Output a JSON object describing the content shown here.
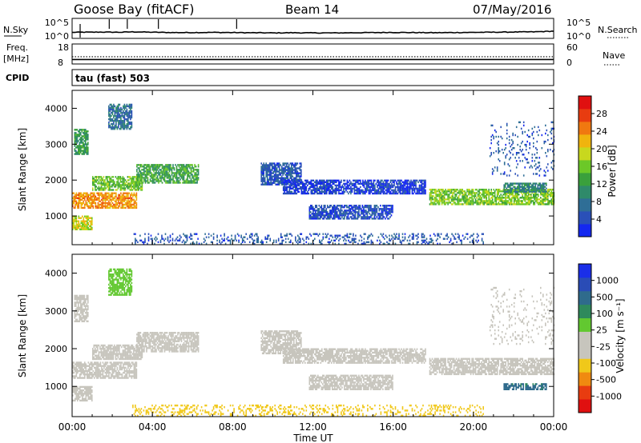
{
  "header": {
    "station": "Goose Bay (fitACF)",
    "beam": "Beam 14",
    "date": "07/May/2016"
  },
  "top_panels": {
    "nsky_label": "N.Sky",
    "nsky_ticks": [
      "10^5",
      "10^0"
    ],
    "nsearch_label": "N.Search",
    "nsearch_ticks": [
      "10^5",
      "10^0"
    ],
    "freq_label": "Freq.",
    "freq_unit": "[MHz]",
    "freq_ticks": [
      "18",
      "8"
    ],
    "nave_label": "Nave",
    "nave_ticks": [
      "60",
      "0"
    ],
    "cpid_label": "CPID",
    "cpid_text": "tau (fast) 503"
  },
  "x_axis": {
    "title": "Time UT",
    "ticks": [
      "00:00",
      "04:00",
      "08:00",
      "12:00",
      "16:00",
      "20:00",
      "00:00"
    ]
  },
  "colors": {
    "power_scale": [
      "#1428f0",
      "#2a50b8",
      "#2f6e96",
      "#2f8a6a",
      "#3aa03c",
      "#6cc828",
      "#c8d81e",
      "#f0b40e",
      "#f07810",
      "#e83c10",
      "#e01010"
    ],
    "velocity_scale": [
      "#1a2ee8",
      "#2a4cb6",
      "#2f6b8c",
      "#2f8a5c",
      "#62c830",
      "#c7c5bd",
      "#c7c5bd",
      "#f0c81a",
      "#f08a10",
      "#e83c10",
      "#e01010"
    ]
  },
  "chart_data": [
    {
      "type": "line",
      "name": "n-sky-search",
      "ylabel": "N.Sky",
      "y2label": "N.Search",
      "ylim": [
        0,
        5
      ],
      "x_hours": [
        0,
        0.5,
        1,
        1.5,
        2,
        2.5,
        3,
        3.5,
        4,
        5,
        6,
        7,
        8,
        9,
        10,
        11,
        12,
        13,
        14,
        15,
        16,
        17,
        18,
        19,
        20,
        21,
        22,
        23,
        24
      ],
      "y_log10": [
        1.25,
        1.3,
        1.3,
        1.35,
        1.3,
        1.3,
        1.4,
        1.35,
        1.3,
        1.2,
        1.2,
        1.25,
        1.2,
        1.15,
        1.1,
        1.15,
        1.1,
        1.1,
        1.15,
        1.2,
        1.25,
        1.2,
        1.15,
        1.2,
        1.25,
        1.3,
        1.35,
        1.4,
        1.6
      ],
      "spikes_hours": [
        0.4,
        1.85,
        2.75,
        4.3,
        8.2
      ]
    },
    {
      "type": "line",
      "name": "freq-nave",
      "ylabel": "Freq. [MHz]",
      "y2label": "Nave",
      "ylim": [
        8,
        18
      ],
      "y2lim": [
        0,
        60
      ],
      "series": [
        {
          "name": "Freq.",
          "values": [
            10.0,
            10.0
          ]
        },
        {
          "name": "Nave",
          "values": [
            21,
            21
          ]
        }
      ],
      "x_hours": [
        0,
        24
      ]
    },
    {
      "type": "heatmap",
      "name": "power",
      "ylabel": "Slant Range [km]",
      "ylim": [
        200,
        4500
      ],
      "y_ticks": [
        1000,
        2000,
        3000,
        4000
      ],
      "xlim_hours": [
        0,
        24
      ],
      "colorbar_label": "Power [dB]",
      "colorbar_ticks": [
        4,
        8,
        12,
        16,
        20,
        24,
        28
      ],
      "colorbar_range": [
        0,
        30
      ],
      "regions": [
        {
          "h0": 0.0,
          "h1": 3.2,
          "r_lo": 1200,
          "r_hi": 1650,
          "value": 22
        },
        {
          "h0": 3.2,
          "h1": 6.3,
          "r_lo": 1900,
          "r_hi": 2400,
          "value": 12
        },
        {
          "h0": 1.0,
          "h1": 3.5,
          "r_lo": 1700,
          "r_hi": 2100,
          "value": 14
        },
        {
          "h0": 0.1,
          "h1": 0.8,
          "r_lo": 2700,
          "r_hi": 3400,
          "value": 11
        },
        {
          "h0": 1.8,
          "h1": 3.0,
          "r_lo": 3400,
          "r_hi": 4100,
          "value": 7
        },
        {
          "h0": 0.0,
          "h1": 1.0,
          "r_lo": 600,
          "r_hi": 1000,
          "value": 18
        },
        {
          "h0": 9.4,
          "h1": 11.4,
          "r_lo": 1850,
          "r_hi": 2450,
          "value": 5
        },
        {
          "h0": 10.5,
          "h1": 17.6,
          "r_lo": 1600,
          "r_hi": 2000,
          "value": 3
        },
        {
          "h0": 11.8,
          "h1": 16.0,
          "r_lo": 900,
          "r_hi": 1300,
          "value": 4
        },
        {
          "h0": 17.8,
          "h1": 24.0,
          "r_lo": 1300,
          "r_hi": 1750,
          "value": 15
        },
        {
          "h0": 21.5,
          "h1": 23.6,
          "r_lo": 1650,
          "r_hi": 1900,
          "value": 9
        },
        {
          "h0": 20.8,
          "h1": 24.0,
          "r_lo": 2100,
          "r_hi": 3600,
          "value": 5
        },
        {
          "h0": 3.0,
          "h1": 20.5,
          "r_lo": 200,
          "r_hi": 500,
          "value": 5
        }
      ]
    },
    {
      "type": "heatmap",
      "name": "velocity",
      "ylabel": "Slant Range [km]",
      "ylim": [
        200,
        4500
      ],
      "y_ticks": [
        1000,
        2000,
        3000,
        4000
      ],
      "xlim_hours": [
        0,
        24
      ],
      "colorbar_label": "Velocity [m s⁻¹]",
      "colorbar_ticks": [
        "1000",
        "500",
        "100",
        "25",
        "-25",
        "-100",
        "-500",
        "-1000"
      ],
      "regions": [
        {
          "h0": 0.0,
          "h1": 3.2,
          "r_lo": 1200,
          "r_hi": 1650,
          "value": 0
        },
        {
          "h0": 3.2,
          "h1": 6.3,
          "r_lo": 1900,
          "r_hi": 2400,
          "value": 0
        },
        {
          "h0": 1.0,
          "h1": 3.5,
          "r_lo": 1700,
          "r_hi": 2100,
          "value": 0
        },
        {
          "h0": 0.1,
          "h1": 0.8,
          "r_lo": 2700,
          "r_hi": 3400,
          "value": 0
        },
        {
          "h0": 1.8,
          "h1": 3.0,
          "r_lo": 3400,
          "r_hi": 4100,
          "value": 60
        },
        {
          "h0": 0.0,
          "h1": 1.0,
          "r_lo": 600,
          "r_hi": 1000,
          "value": 0
        },
        {
          "h0": 9.4,
          "h1": 11.4,
          "r_lo": 1850,
          "r_hi": 2450,
          "value": 0
        },
        {
          "h0": 10.5,
          "h1": 17.6,
          "r_lo": 1600,
          "r_hi": 2000,
          "value": 0
        },
        {
          "h0": 11.8,
          "h1": 16.0,
          "r_lo": 900,
          "r_hi": 1300,
          "value": 0
        },
        {
          "h0": 17.8,
          "h1": 24.0,
          "r_lo": 1300,
          "r_hi": 1750,
          "value": 0
        },
        {
          "h0": 21.5,
          "h1": 23.6,
          "r_lo": 900,
          "r_hi": 1050,
          "value": 300
        },
        {
          "h0": 20.8,
          "h1": 24.0,
          "r_lo": 2100,
          "r_hi": 3600,
          "value": 0
        },
        {
          "h0": 3.0,
          "h1": 20.5,
          "r_lo": 200,
          "r_hi": 500,
          "value": -80
        }
      ]
    }
  ]
}
